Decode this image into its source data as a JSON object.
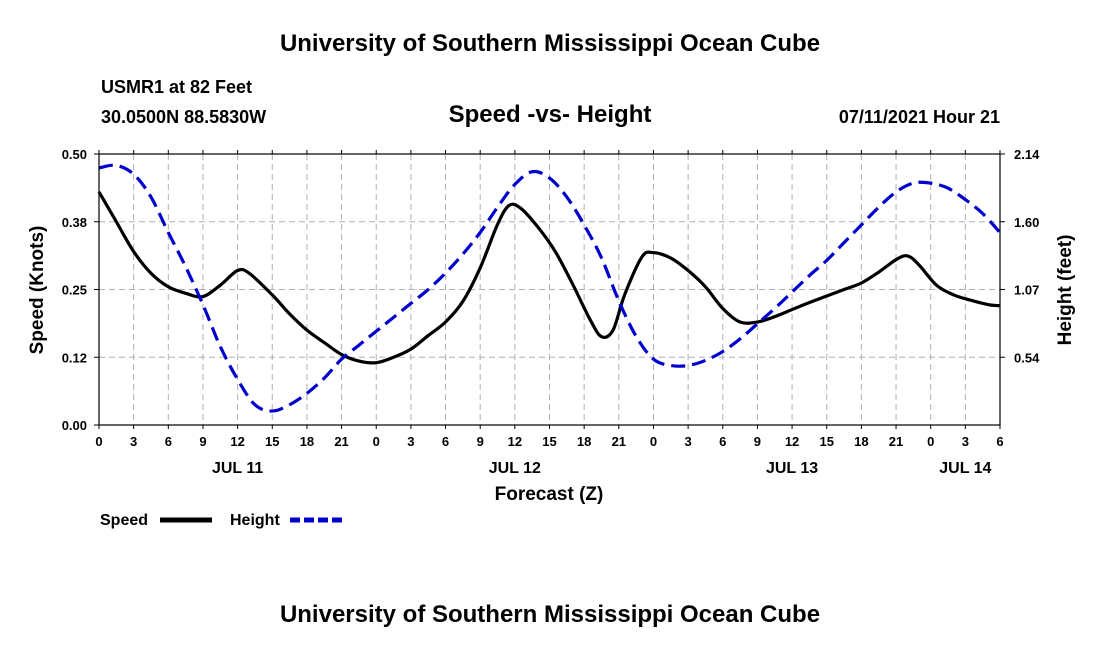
{
  "page": {
    "title_top": "University of Southern Mississippi Ocean Cube",
    "title_bottom": "University of Southern Mississippi Ocean Cube",
    "station": "USMR1 at 82 Feet",
    "coords": "30.0500N  88.5830W",
    "date": "07/11/2021 Hour 21"
  },
  "chart_data": {
    "type": "line",
    "title": "Speed -vs- Height",
    "xlabel": "Forecast (Z)",
    "ylabel_left": "Speed (Knots)",
    "ylabel_right": "Height (feet)",
    "x_range_hours": [
      0,
      78
    ],
    "x_ticks": [
      {
        "h": 0,
        "label": "0"
      },
      {
        "h": 3,
        "label": "3"
      },
      {
        "h": 6,
        "label": "6"
      },
      {
        "h": 9,
        "label": "9"
      },
      {
        "h": 12,
        "label": "12"
      },
      {
        "h": 15,
        "label": "15"
      },
      {
        "h": 18,
        "label": "18"
      },
      {
        "h": 21,
        "label": "21"
      },
      {
        "h": 24,
        "label": "0"
      },
      {
        "h": 27,
        "label": "3"
      },
      {
        "h": 30,
        "label": "6"
      },
      {
        "h": 33,
        "label": "9"
      },
      {
        "h": 36,
        "label": "12"
      },
      {
        "h": 39,
        "label": "15"
      },
      {
        "h": 42,
        "label": "18"
      },
      {
        "h": 45,
        "label": "21"
      },
      {
        "h": 48,
        "label": "0"
      },
      {
        "h": 51,
        "label": "3"
      },
      {
        "h": 54,
        "label": "6"
      },
      {
        "h": 57,
        "label": "9"
      },
      {
        "h": 60,
        "label": "12"
      },
      {
        "h": 63,
        "label": "15"
      },
      {
        "h": 66,
        "label": "18"
      },
      {
        "h": 69,
        "label": "21"
      },
      {
        "h": 72,
        "label": "0"
      },
      {
        "h": 75,
        "label": "3"
      },
      {
        "h": 78,
        "label": "6"
      }
    ],
    "day_labels": [
      {
        "h": 12,
        "label": "JUL 11"
      },
      {
        "h": 36,
        "label": "JUL 12"
      },
      {
        "h": 60,
        "label": "JUL 13"
      },
      {
        "h": 75,
        "label": "JUL 14"
      }
    ],
    "y_left": {
      "min": 0,
      "max": 0.5,
      "ticks": [
        0,
        0.125,
        0.25,
        0.375,
        0.5
      ],
      "tick_labels": [
        "0.00",
        "0.12",
        "0.25",
        "0.38",
        "0.50"
      ]
    },
    "y_right": {
      "min": 0,
      "max": 2.14,
      "ticks": [
        0.535,
        1.07,
        1.605,
        2.14
      ],
      "tick_labels": [
        "0.54",
        "1.07",
        "1.60",
        "2.14"
      ]
    },
    "grid": true,
    "legend_position": "bottom-left",
    "series": [
      {
        "name": "Speed",
        "axis": "left",
        "color": "#000000",
        "dash": "solid",
        "points": [
          [
            0,
            0.43
          ],
          [
            1.5,
            0.375
          ],
          [
            3,
            0.32
          ],
          [
            4.5,
            0.28
          ],
          [
            6,
            0.255
          ],
          [
            7.5,
            0.243
          ],
          [
            9,
            0.237
          ],
          [
            10.5,
            0.258
          ],
          [
            12,
            0.285
          ],
          [
            13,
            0.28
          ],
          [
            15,
            0.24
          ],
          [
            16.5,
            0.205
          ],
          [
            18,
            0.175
          ],
          [
            19.5,
            0.152
          ],
          [
            21,
            0.13
          ],
          [
            22.5,
            0.118
          ],
          [
            24,
            0.115
          ],
          [
            25.5,
            0.125
          ],
          [
            27,
            0.14
          ],
          [
            28.5,
            0.165
          ],
          [
            30,
            0.19
          ],
          [
            31.5,
            0.228
          ],
          [
            33,
            0.29
          ],
          [
            34.5,
            0.37
          ],
          [
            35.5,
            0.405
          ],
          [
            36.5,
            0.4
          ],
          [
            38,
            0.365
          ],
          [
            39.5,
            0.32
          ],
          [
            41,
            0.26
          ],
          [
            42.5,
            0.195
          ],
          [
            43.5,
            0.163
          ],
          [
            44.5,
            0.175
          ],
          [
            45.5,
            0.24
          ],
          [
            47,
            0.31
          ],
          [
            48,
            0.318
          ],
          [
            49.5,
            0.308
          ],
          [
            51,
            0.285
          ],
          [
            52.5,
            0.255
          ],
          [
            54,
            0.215
          ],
          [
            55.5,
            0.19
          ],
          [
            57,
            0.19
          ],
          [
            58.5,
            0.2
          ],
          [
            60,
            0.213
          ],
          [
            61.5,
            0.226
          ],
          [
            63,
            0.238
          ],
          [
            64.5,
            0.25
          ],
          [
            66,
            0.262
          ],
          [
            67.5,
            0.282
          ],
          [
            69,
            0.305
          ],
          [
            70,
            0.312
          ],
          [
            71,
            0.295
          ],
          [
            72.5,
            0.258
          ],
          [
            74,
            0.24
          ],
          [
            75.5,
            0.23
          ],
          [
            77,
            0.222
          ],
          [
            78,
            0.22
          ]
        ]
      },
      {
        "name": "Height",
        "axis": "right",
        "color": "#0000cc",
        "dash": "dashed",
        "points": [
          [
            0,
            2.03
          ],
          [
            1.5,
            2.05
          ],
          [
            3,
            1.98
          ],
          [
            4.5,
            1.8
          ],
          [
            6,
            1.52
          ],
          [
            7.5,
            1.25
          ],
          [
            9,
            0.95
          ],
          [
            10.5,
            0.62
          ],
          [
            12,
            0.36
          ],
          [
            13.5,
            0.16
          ],
          [
            15,
            0.11
          ],
          [
            16.5,
            0.16
          ],
          [
            18,
            0.25
          ],
          [
            19.5,
            0.37
          ],
          [
            21,
            0.52
          ],
          [
            22.5,
            0.63
          ],
          [
            24,
            0.74
          ],
          [
            25.5,
            0.85
          ],
          [
            27,
            0.96
          ],
          [
            28.5,
            1.07
          ],
          [
            30,
            1.2
          ],
          [
            31.5,
            1.35
          ],
          [
            33,
            1.52
          ],
          [
            34.5,
            1.72
          ],
          [
            36,
            1.9
          ],
          [
            37.5,
            2.0
          ],
          [
            39,
            1.95
          ],
          [
            40.5,
            1.8
          ],
          [
            42,
            1.58
          ],
          [
            43.5,
            1.32
          ],
          [
            45,
            0.98
          ],
          [
            46.5,
            0.7
          ],
          [
            48,
            0.52
          ],
          [
            49.5,
            0.47
          ],
          [
            51,
            0.47
          ],
          [
            52.5,
            0.51
          ],
          [
            54,
            0.58
          ],
          [
            55.5,
            0.68
          ],
          [
            57,
            0.8
          ],
          [
            58.5,
            0.92
          ],
          [
            60,
            1.05
          ],
          [
            61.5,
            1.18
          ],
          [
            63,
            1.3
          ],
          [
            64.5,
            1.44
          ],
          [
            66,
            1.58
          ],
          [
            67.5,
            1.72
          ],
          [
            69,
            1.84
          ],
          [
            70.5,
            1.91
          ],
          [
            72,
            1.91
          ],
          [
            73.5,
            1.87
          ],
          [
            75,
            1.78
          ],
          [
            76.5,
            1.67
          ],
          [
            78,
            1.52
          ]
        ]
      }
    ]
  }
}
